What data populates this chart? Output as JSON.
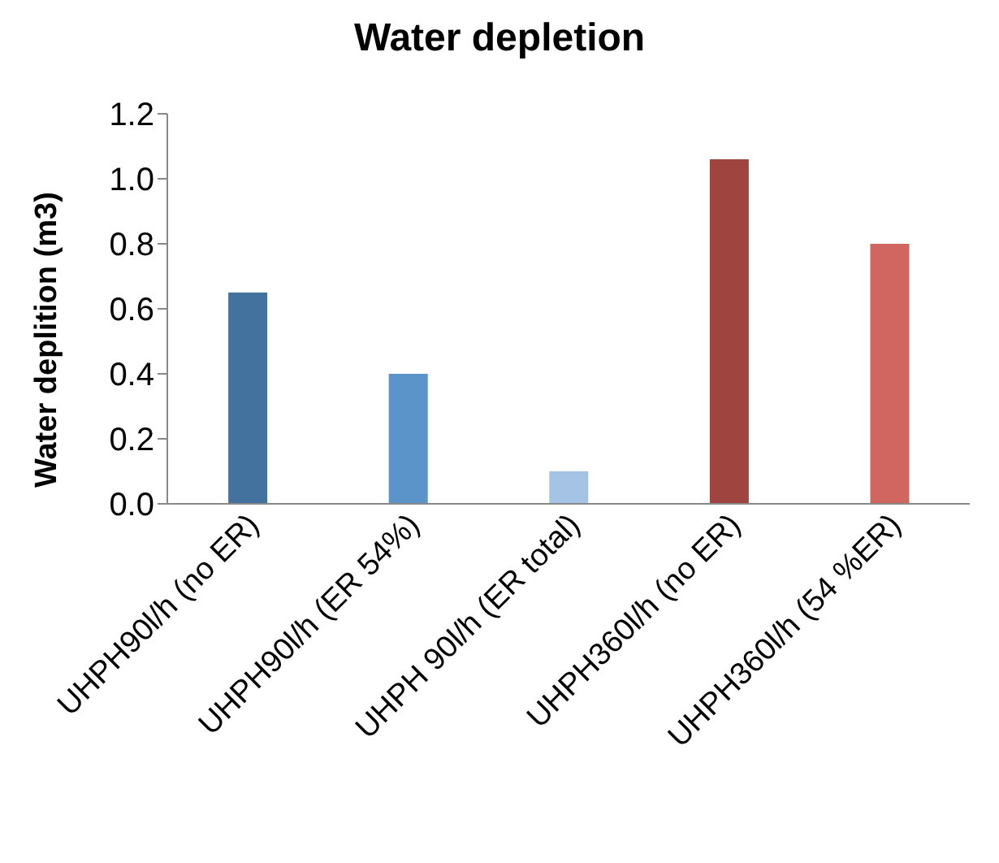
{
  "chart_data": {
    "type": "bar",
    "title": "Water depletion",
    "ylabel": "Water deplition (m3)",
    "categories": [
      "UHPH90l/h (no ER)",
      "UHPH90l/h (ER 54%)",
      "UHPH 90l/h (ER total)",
      "UHPH360l/h (no ER)",
      "UHPH360l/h (54 %ER)"
    ],
    "values": [
      0.65,
      0.4,
      0.1,
      1.06,
      0.8
    ],
    "colors": [
      "#44729f",
      "#5b94c9",
      "#a5c3e5",
      "#a0443f",
      "#d0665f"
    ],
    "ylim": [
      0,
      1.2
    ],
    "yticks": [
      {
        "value": 0,
        "label": "0.0"
      },
      0.2,
      0.4,
      0.6,
      0.8,
      {
        "value": 1,
        "label": "1.0"
      },
      1.2
    ],
    "grid": false,
    "legend": false
  }
}
